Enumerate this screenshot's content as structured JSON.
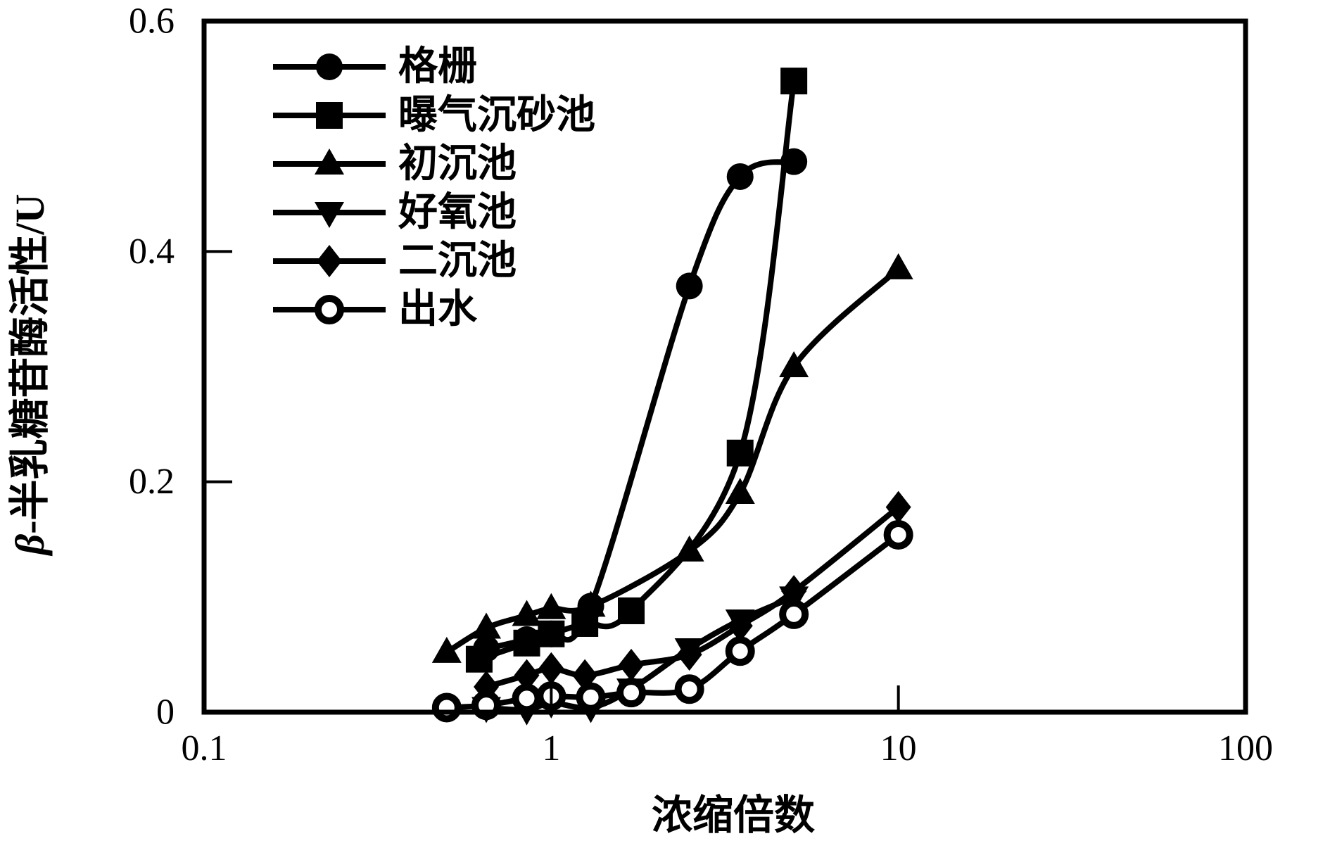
{
  "figure": {
    "background": "#ffffff",
    "ink_color": "#000000"
  },
  "chart_data": {
    "type": "line",
    "title": "",
    "xlabel": "浓缩倍数",
    "ylabel": "β-半乳糖苷酶活性/U",
    "x_scale": "log",
    "y_scale": "linear",
    "xlim": [
      0.1,
      100
    ],
    "ylim": [
      0,
      0.6
    ],
    "x_ticks": [
      0.1,
      1,
      10,
      100
    ],
    "x_tick_labels": [
      "0.1",
      "1",
      "10",
      "100"
    ],
    "y_ticks": [
      0,
      0.2,
      0.4,
      0.6
    ],
    "y_tick_labels": [
      "0",
      "0.2",
      "0.4",
      "0.6"
    ],
    "grid": false,
    "legend_position": "top-left-inside",
    "series": [
      {
        "name": "格栅",
        "marker": "circle-filled",
        "points": [
          [
            0.65,
            0.055
          ],
          [
            0.85,
            0.063
          ],
          [
            1.0,
            0.068
          ],
          [
            1.3,
            0.092
          ],
          [
            2.5,
            0.37
          ],
          [
            3.5,
            0.465
          ],
          [
            5,
            0.478
          ]
        ]
      },
      {
        "name": "曝气沉砂池",
        "marker": "square-filled",
        "points": [
          [
            0.62,
            0.046
          ],
          [
            0.85,
            0.06
          ],
          [
            1.0,
            0.068
          ],
          [
            1.25,
            0.077
          ],
          [
            1.7,
            0.088
          ],
          [
            3.5,
            0.225
          ],
          [
            5,
            0.548
          ]
        ]
      },
      {
        "name": "初沉池",
        "marker": "triangle-up-filled",
        "points": [
          [
            0.5,
            0.052
          ],
          [
            0.65,
            0.073
          ],
          [
            0.85,
            0.084
          ],
          [
            1.0,
            0.09
          ],
          [
            1.3,
            0.092
          ],
          [
            2.5,
            0.14
          ],
          [
            3.5,
            0.19
          ],
          [
            5,
            0.3
          ],
          [
            10,
            0.385
          ]
        ]
      },
      {
        "name": "好氧池",
        "marker": "triangle-down-filled",
        "points": [
          [
            0.65,
            0.004
          ],
          [
            0.85,
            0.002
          ],
          [
            1.0,
            0.008
          ],
          [
            1.3,
            0.004
          ],
          [
            1.7,
            0.02
          ],
          [
            2.5,
            0.055
          ],
          [
            3.5,
            0.08
          ],
          [
            5,
            0.1
          ]
        ]
      },
      {
        "name": "二沉池",
        "marker": "diamond-filled",
        "points": [
          [
            0.65,
            0.022
          ],
          [
            0.85,
            0.032
          ],
          [
            1.0,
            0.038
          ],
          [
            1.25,
            0.032
          ],
          [
            1.7,
            0.041
          ],
          [
            2.5,
            0.05
          ],
          [
            3.5,
            0.075
          ],
          [
            5,
            0.105
          ],
          [
            10,
            0.178
          ]
        ]
      },
      {
        "name": "出水",
        "marker": "circle-open",
        "points": [
          [
            0.5,
            0.004
          ],
          [
            0.65,
            0.006
          ],
          [
            0.85,
            0.012
          ],
          [
            1.0,
            0.014
          ],
          [
            1.3,
            0.013
          ],
          [
            1.7,
            0.017
          ],
          [
            2.5,
            0.02
          ],
          [
            3.5,
            0.053
          ],
          [
            5,
            0.085
          ],
          [
            10,
            0.154
          ]
        ]
      }
    ]
  }
}
